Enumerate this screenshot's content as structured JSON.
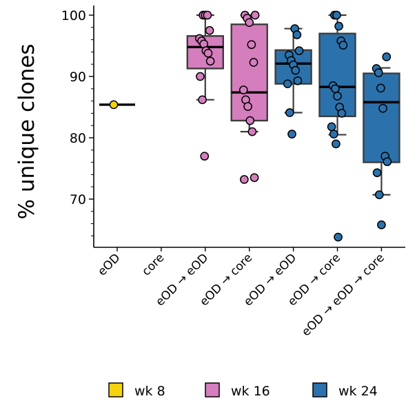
{
  "chart_data": {
    "type": "box",
    "title": "",
    "xlabel": "",
    "ylabel": "% unique clones",
    "ylim": [
      62,
      101
    ],
    "yticks": [
      70,
      80,
      90,
      100
    ],
    "categories": [
      "eOD",
      "core",
      "eOD → eOD",
      "eOD → core",
      "eOD → eOD",
      "eOD → core",
      "eOD → eOD → core"
    ],
    "groups": [
      {
        "category_index": 0,
        "series": "wk 8",
        "median": 85.4,
        "points": [
          85.4
        ]
      },
      {
        "category_index": 1,
        "series": null,
        "median": null,
        "points": []
      },
      {
        "category_index": 2,
        "series": "wk 16",
        "q1": 91.3,
        "median": 94.8,
        "q3": 96.6,
        "whisker_low": 86.2,
        "whisker_high": 100,
        "points": [
          100,
          100,
          100,
          97.5,
          96.2,
          95.8,
          95.3,
          94.2,
          93.8,
          92.5,
          90.0,
          86.2,
          77.0
        ]
      },
      {
        "category_index": 3,
        "series": "wk 16",
        "q1": 82.8,
        "median": 87.4,
        "q3": 98.5,
        "whisker_low": 81.0,
        "whisker_high": 100,
        "points": [
          100,
          100,
          99.5,
          98.8,
          95.2,
          92.3,
          87.8,
          86.2,
          85.1,
          82.8,
          81.0,
          73.5,
          73.2
        ]
      },
      {
        "category_index": 4,
        "series": "wk 24",
        "q1": 88.8,
        "median": 92.1,
        "q3": 94.3,
        "whisker_low": 84.1,
        "whisker_high": 97.8,
        "points": [
          97.8,
          96.8,
          94.2,
          93.5,
          92.6,
          91.9,
          91.0,
          89.3,
          88.8,
          84.1,
          80.6
        ]
      },
      {
        "category_index": 5,
        "series": "wk 24",
        "q1": 83.5,
        "median": 88.3,
        "q3": 97.0,
        "whisker_low": 80.5,
        "whisker_high": 100,
        "points": [
          100,
          100,
          98.2,
          95.8,
          95.1,
          88.5,
          88.0,
          86.8,
          85.0,
          84.0,
          81.8,
          80.6,
          79.0,
          63.8
        ]
      },
      {
        "category_index": 6,
        "series": "wk 24",
        "q1": 76.0,
        "median": 85.8,
        "q3": 90.5,
        "whisker_low": 70.7,
        "whisker_high": 91.4,
        "points": [
          93.2,
          91.3,
          90.6,
          88.1,
          84.8,
          77.0,
          76.1,
          74.3,
          70.7,
          65.8
        ]
      }
    ],
    "legend": {
      "placement": "bottom",
      "items": [
        {
          "label": "wk 8",
          "color": "#f5d30e"
        },
        {
          "label": "wk 16",
          "color": "#d57ebd"
        },
        {
          "label": "wk 24",
          "color": "#2b72ad"
        }
      ]
    }
  }
}
